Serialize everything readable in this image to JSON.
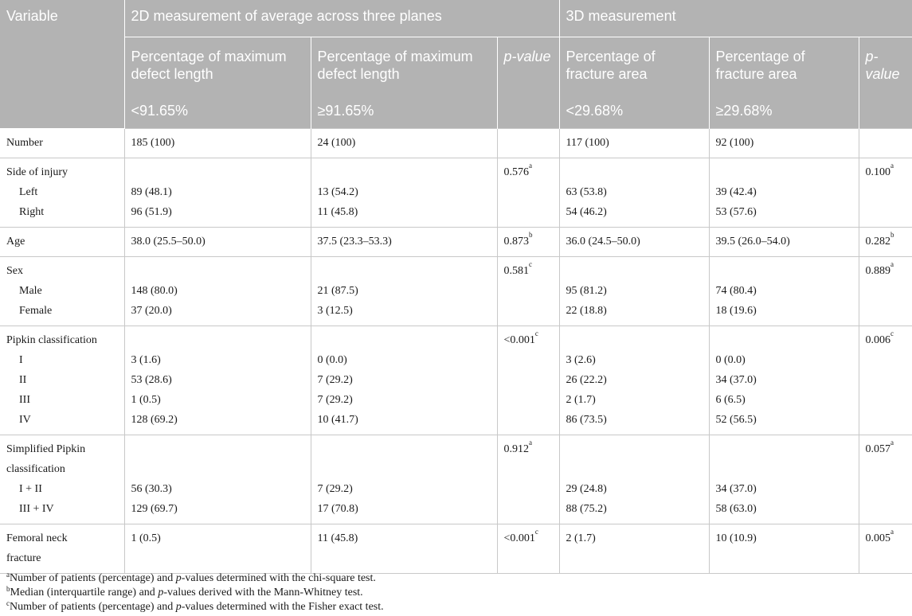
{
  "header": {
    "variable": "Variable",
    "group_2d": "2D measurement of average across three planes",
    "group_3d": "3D measurement",
    "col_2d_a": "Percentage of maximum defect length",
    "col_2d_b": "Percentage of maximum defect length",
    "col_3d_a": "Percentage of fracture area",
    "col_3d_b": "Percentage of fracture area",
    "p_value_2d": "p-value",
    "p_value_3d": "p-value",
    "cut_2d_a": "<91.65%",
    "cut_2d_b": "≥91.65%",
    "cut_3d_a": "<29.68%",
    "cut_3d_b": "≥29.68%"
  },
  "rows": {
    "number": {
      "label": "Number",
      "v2a": "185 (100)",
      "v2b": "24 (100)",
      "p2": "",
      "v3a": "117 (100)",
      "v3b": "92 (100)",
      "p3": ""
    },
    "side": {
      "label": "Side of injury",
      "p2": "0.576",
      "p2_sup": "a",
      "p3": "0.100",
      "p3_sup": "a",
      "left": {
        "label": "Left",
        "v2a": "89 (48.1)",
        "v2b": "13 (54.2)",
        "v3a": "63 (53.8)",
        "v3b": "39 (42.4)"
      },
      "right": {
        "label": "Right",
        "v2a": "96 (51.9)",
        "v2b": "11 (45.8)",
        "v3a": "54 (46.2)",
        "v3b": "53 (57.6)"
      }
    },
    "age": {
      "label": "Age",
      "v2a": "38.0 (25.5–50.0)",
      "v2b": "37.5 (23.3–53.3)",
      "p2": "0.873",
      "p2_sup": "b",
      "v3a": "36.0 (24.5–50.0)",
      "v3b": "39.5 (26.0–54.0)",
      "p3": "0.282",
      "p3_sup": "b"
    },
    "sex": {
      "label": "Sex",
      "p2": "0.581",
      "p2_sup": "c",
      "p3": "0.889",
      "p3_sup": "a",
      "male": {
        "label": "Male",
        "v2a": "148 (80.0)",
        "v2b": "21 (87.5)",
        "v3a": "95 (81.2)",
        "v3b": "74 (80.4)"
      },
      "female": {
        "label": "Female",
        "v2a": "37 (20.0)",
        "v2b": "3 (12.5)",
        "v3a": "22 (18.8)",
        "v3b": "18 (19.6)"
      }
    },
    "pipkin": {
      "label": "Pipkin classification",
      "p2": "<0.001",
      "p2_sup": "c",
      "p3": "0.006",
      "p3_sup": "c",
      "i": {
        "label": "I",
        "v2a": "3 (1.6)",
        "v2b": "0 (0.0)",
        "v3a": "3 (2.6)",
        "v3b": "0 (0.0)"
      },
      "ii": {
        "label": "II",
        "v2a": "53 (28.6)",
        "v2b": "7 (29.2)",
        "v3a": "26 (22.2)",
        "v3b": "34 (37.0)"
      },
      "iii": {
        "label": "III",
        "v2a": "1 (0.5)",
        "v2b": "7 (29.2)",
        "v3a": "2 (1.7)",
        "v3b": "6 (6.5)"
      },
      "iv": {
        "label": "IV",
        "v2a": "128 (69.2)",
        "v2b": "10 (41.7)",
        "v3a": "86 (73.5)",
        "v3b": "52 (56.5)"
      }
    },
    "simplified": {
      "label_1": "Simplified Pipkin",
      "label_2": "classification",
      "p2": "0.912",
      "p2_sup": "a",
      "p3": "0.057",
      "p3_sup": "a",
      "i_ii": {
        "label": "I + II",
        "v2a": "56 (30.3)",
        "v2b": "7 (29.2)",
        "v3a": "29 (24.8)",
        "v3b": "34 (37.0)"
      },
      "iii_iv": {
        "label": "III + IV",
        "v2a": "129 (69.7)",
        "v2b": "17 (70.8)",
        "v3a": "88 (75.2)",
        "v3b": "58 (63.0)"
      }
    },
    "femoral": {
      "label_1": "Femoral neck",
      "label_2": "fracture",
      "v2a": "1 (0.5)",
      "v2b": "11 (45.8)",
      "p2": "<0.001",
      "p2_sup": "c",
      "v3a": "2 (1.7)",
      "v3b": "10 (10.9)",
      "p3": "0.005",
      "p3_sup": "a"
    }
  },
  "footnotes": {
    "a": {
      "mark": "a",
      "pre": "Number of patients (percentage) and ",
      "italic": "p",
      "post": "-values determined with the chi-square test."
    },
    "b": {
      "mark": "b",
      "pre": "Median (interquartile range) and ",
      "italic": "p",
      "post": "-values derived with the Mann-Whitney test."
    },
    "c": {
      "mark": "c",
      "pre": "Number of patients (percentage) and ",
      "italic": "p",
      "post": "-values determined with the Fisher exact test."
    }
  }
}
